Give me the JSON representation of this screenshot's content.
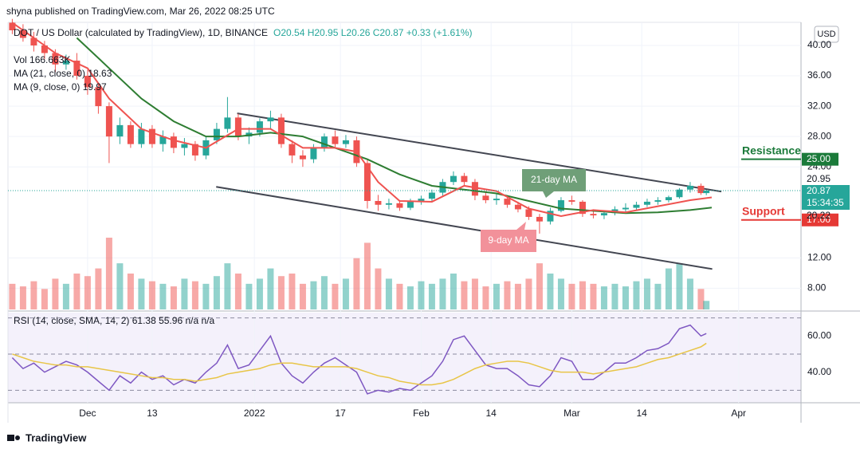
{
  "header": {
    "publisher": "shyna published on TradingView.com, Mar 26, 2022 08:25 UTC",
    "currency": "USD",
    "brand": "TradingView"
  },
  "chart_data": [
    {
      "type": "candlestick",
      "legend": {
        "symbol": "DOT / US Dollar (calculated by TradingView), 1D, BINANCE",
        "ohlc": "O20.54 H20.95 L20.26 C20.87 +0.33 (+1.61%)",
        "volume": "Vol 166.663K",
        "ma21": "MA (21, close, 0) 18.63",
        "ma9": "MA (9, close, 0) 19.97"
      },
      "xlim": [
        -14.8,
        132.6
      ],
      "xticks": [
        {
          "value": 0,
          "label": "Dec"
        },
        {
          "value": 12,
          "label": "13"
        },
        {
          "value": 31,
          "label": "2022"
        },
        {
          "value": 47,
          "label": "17"
        },
        {
          "value": 62,
          "label": "Feb"
        },
        {
          "value": 75,
          "label": "14"
        },
        {
          "value": 90,
          "label": "Mar"
        },
        {
          "value": 103,
          "label": "14"
        },
        {
          "value": 121,
          "label": "Apr"
        }
      ],
      "ylim": [
        5.2,
        43.05
      ],
      "yticks": [
        {
          "value": 40,
          "label": "40.00"
        },
        {
          "value": 36,
          "label": "36.00"
        },
        {
          "value": 32,
          "label": "32.00"
        },
        {
          "value": 28,
          "label": "28.00"
        },
        {
          "value": 24,
          "label": "24.00"
        },
        {
          "value": 12,
          "label": "12.00"
        },
        {
          "value": 8,
          "label": "8.00"
        }
      ],
      "grid": true,
      "up_color": "#26a69a",
      "down_color": "#ef5350",
      "x": [
        -14,
        -12,
        -10,
        -8,
        -6,
        -4,
        -2,
        0,
        2,
        4,
        6,
        8,
        10,
        12,
        14,
        16,
        18,
        20,
        22,
        24,
        26,
        28,
        30,
        32,
        34,
        36,
        38,
        40,
        42,
        44,
        46,
        48,
        50,
        52,
        54,
        56,
        58,
        60,
        62,
        64,
        66,
        68,
        70,
        72,
        74,
        76,
        78,
        80,
        82,
        84,
        86,
        88,
        90,
        92,
        94,
        96,
        98,
        100,
        102,
        104,
        106,
        108,
        110,
        112,
        114,
        115
      ],
      "open": [
        43,
        42,
        41,
        40,
        39,
        37.5,
        38,
        36,
        34.5,
        32,
        28,
        29.5,
        27,
        29,
        27,
        28,
        26.5,
        27,
        25.5,
        27.5,
        29,
        30.5,
        28,
        28.5,
        30,
        30.5,
        27,
        25.5,
        25,
        26.5,
        28,
        27,
        27.5,
        24.5,
        19.5,
        19,
        19.2,
        18.6,
        19.4,
        19.8,
        20.6,
        22,
        22.8,
        22,
        20.2,
        19.6,
        19.8,
        19,
        18.4,
        17.4,
        16.8,
        18.2,
        19.6,
        19.4,
        17.8,
        17.6,
        17.9,
        18.4,
        18.6,
        19,
        19.4,
        19.6,
        20,
        21,
        21.5,
        20.54
      ],
      "high": [
        43.5,
        42.8,
        41.8,
        40.6,
        39.5,
        38.8,
        39,
        36.8,
        35,
        32.5,
        30.5,
        30,
        29.8,
        29.5,
        28.8,
        28.5,
        27.8,
        27.4,
        28,
        29.8,
        33.2,
        31,
        29.2,
        30.4,
        31.4,
        31,
        27.5,
        26.2,
        27,
        28.4,
        28.8,
        28.2,
        28,
        25,
        20.3,
        19.8,
        19.6,
        19.8,
        20.2,
        21,
        22.4,
        23.4,
        23.2,
        22.4,
        20.8,
        20.4,
        20.2,
        19.4,
        18.8,
        17.8,
        18.6,
        20,
        20.2,
        19.6,
        18.4,
        18.2,
        18.8,
        19.2,
        19.4,
        19.8,
        20,
        20.2,
        21.2,
        22,
        21.8,
        20.95
      ],
      "low": [
        41.5,
        40.5,
        39.2,
        38.2,
        36.5,
        36.8,
        35.5,
        33.5,
        31,
        24.5,
        27,
        26.5,
        26.5,
        26.5,
        26,
        25.8,
        25.5,
        24.8,
        25,
        27,
        28.5,
        27.5,
        27,
        28,
        29,
        26.5,
        24.5,
        24,
        24.5,
        26,
        26.4,
        26.5,
        24,
        18.5,
        18.2,
        18.4,
        18.2,
        18.3,
        19,
        19.4,
        20.2,
        21.6,
        21.5,
        19.6,
        19.2,
        19,
        18.6,
        18,
        17,
        15.2,
        16.4,
        18,
        19,
        17.4,
        17.2,
        17.1,
        17.6,
        18,
        18.2,
        18.7,
        19,
        19.3,
        19.8,
        20.6,
        20.3,
        20.26
      ],
      "close": [
        42,
        41,
        40,
        39,
        37.5,
        38,
        36,
        34.5,
        32,
        28,
        29.5,
        27,
        29,
        27,
        28,
        26.5,
        27,
        25.5,
        27.5,
        29,
        30.5,
        28,
        28.5,
        30,
        30.5,
        27,
        25.5,
        25,
        26.5,
        28,
        27,
        27.5,
        24.5,
        19.5,
        19,
        19.2,
        18.6,
        19.4,
        19.8,
        20.6,
        22,
        22.8,
        22,
        20.2,
        19.6,
        19.8,
        19,
        18.4,
        17.4,
        16.8,
        18.2,
        19.6,
        19.4,
        17.8,
        17.6,
        17.9,
        18.4,
        18.6,
        19,
        19.4,
        19.6,
        20,
        21,
        21.5,
        20.54,
        20.87
      ],
      "volume": [
        500,
        450,
        550,
        400,
        600,
        500,
        700,
        650,
        800,
        1400,
        900,
        700,
        600,
        550,
        500,
        450,
        600,
        550,
        500,
        650,
        900,
        700,
        500,
        600,
        800,
        650,
        700,
        500,
        550,
        650,
        500,
        600,
        1000,
        1300,
        800,
        600,
        500,
        450,
        550,
        500,
        600,
        700,
        550,
        600,
        450,
        500,
        550,
        500,
        600,
        900,
        700,
        600,
        500,
        550,
        500,
        450,
        500,
        450,
        550,
        600,
        500,
        800,
        900,
        600,
        400,
        166.663
      ],
      "series": [
        {
          "name": "21-day MA",
          "color": "#2e7d32",
          "x": [
            -2,
            4,
            10,
            16,
            22,
            28,
            34,
            40,
            46,
            52,
            58,
            64,
            70,
            76,
            82,
            88,
            94,
            100,
            106,
            112,
            116
          ],
          "values": [
            41,
            37,
            33,
            30,
            28,
            28,
            28.5,
            28,
            26.5,
            25,
            23,
            21.5,
            21,
            20.5,
            19.5,
            18.5,
            18.2,
            17.9,
            18,
            18.3,
            18.63
          ]
        },
        {
          "name": "9-day MA",
          "color": "#ef5350",
          "x": [
            -14,
            -6,
            0,
            4,
            10,
            16,
            22,
            28,
            34,
            40,
            46,
            50,
            54,
            58,
            64,
            70,
            76,
            82,
            88,
            94,
            100,
            106,
            112,
            116
          ],
          "values": [
            43,
            39,
            37,
            33,
            29,
            27.5,
            26.5,
            29,
            29,
            26.5,
            26.5,
            26,
            22,
            19.5,
            19.4,
            21.5,
            20.8,
            18.5,
            17.5,
            18.3,
            18,
            18.8,
            19.6,
            19.97
          ]
        }
      ],
      "trendlines": [
        {
          "x": [
            27.8,
            117.8
          ],
          "y": [
            31.05,
            20.74
          ]
        },
        {
          "x": [
            23.9,
            116.1
          ],
          "y": [
            21.37,
            10.53
          ]
        }
      ],
      "resistance": {
        "label": "Resistance",
        "value": 25,
        "value_label": "25.00",
        "color": "#1b7a3a"
      },
      "support": {
        "label": "Support",
        "value": 17,
        "value_label": "17.00",
        "color": "#e53935"
      },
      "price_labels": {
        "high": 20.95,
        "last": 20.87,
        "timer": "15:34:35",
        "other": 20.22
      }
    },
    {
      "type": "line",
      "legend": "RSI (14, close, SMA, 14, 2) 61.38 55.96 n/a n/a",
      "ylim": [
        23.1,
        72.9
      ],
      "yticks": [
        {
          "value": 60,
          "label": "60.00"
        },
        {
          "value": 40,
          "label": "40.00"
        }
      ],
      "levels": [
        70,
        50,
        30
      ],
      "series": [
        {
          "name": "RSI",
          "color": "#7e57c2",
          "values": [
            48,
            42,
            45,
            40,
            43,
            46,
            44,
            40,
            35,
            30,
            38,
            34,
            40,
            36,
            38,
            33,
            36,
            34,
            40,
            45,
            55,
            42,
            44,
            52,
            60,
            45,
            38,
            34,
            40,
            45,
            48,
            44,
            40,
            28,
            30,
            29,
            31,
            30,
            34,
            38,
            46,
            58,
            60,
            52,
            44,
            42,
            42,
            38,
            33,
            32,
            38,
            48,
            46,
            36,
            36,
            40,
            45,
            45,
            48,
            52,
            53,
            56,
            64,
            66,
            60,
            61.38
          ]
        },
        {
          "name": "SMA",
          "color": "#e8c547",
          "values": [
            50,
            48,
            46,
            45,
            44,
            44,
            43,
            43,
            42,
            41,
            40,
            39,
            38,
            37,
            37,
            36,
            36,
            35,
            36,
            37,
            39,
            40,
            41,
            42,
            44,
            45,
            45,
            44,
            43,
            43,
            43,
            43,
            42,
            40,
            38,
            37,
            35,
            34,
            33,
            33,
            34,
            36,
            39,
            42,
            44,
            45,
            46,
            46,
            45,
            43,
            41,
            40,
            40,
            40,
            39,
            40,
            41,
            42,
            43,
            45,
            47,
            48,
            50,
            52,
            54,
            55.96
          ]
        }
      ]
    }
  ]
}
